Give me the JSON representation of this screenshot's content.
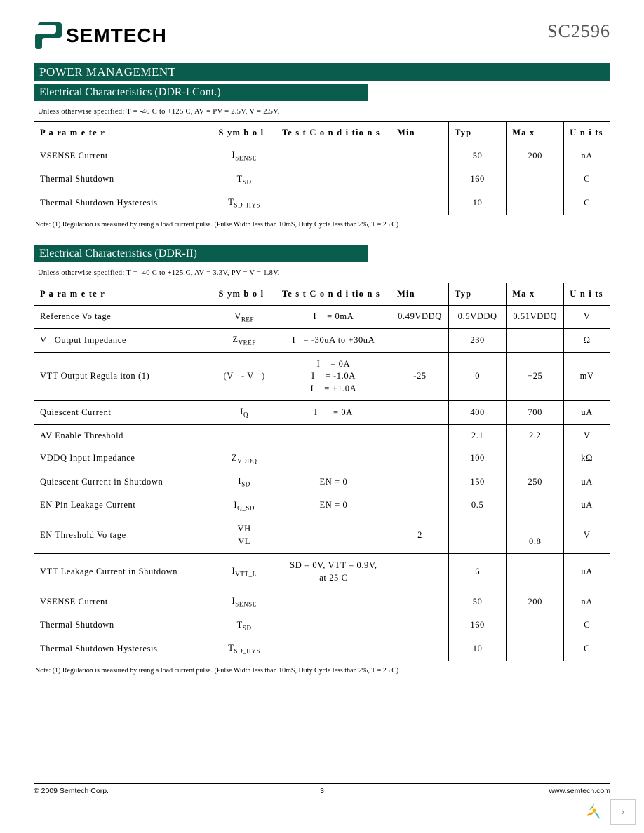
{
  "header": {
    "logo_text": "SEMTECH",
    "part_number": "SC2596"
  },
  "section_pm": "POWER MANAGEMENT",
  "colors": {
    "brand_teal": "#0a5c4c",
    "text_gray": "#555555",
    "border": "#000000"
  },
  "table1": {
    "title": "Electrical Characteristics (DDR-I Cont.)",
    "condition": "Unless otherwise specified:  T       = -40  C to +125   C, AV   = PV   = 2.5V, V       = 2.5V.",
    "columns": [
      "P a ra m e te r",
      "S ym b o l",
      "Te s t C o n d i tio n s",
      "Min",
      "Typ",
      "Ma x",
      "U n i ts"
    ],
    "rows": [
      {
        "param": "VSENSE Current",
        "symbol": "I",
        "symbol_sub": "SENSE",
        "test": "",
        "min": "",
        "typ": "50",
        "max": "200",
        "units": "nA"
      },
      {
        "param": "Thermal Shutdown",
        "symbol": "T",
        "symbol_sub": "SD",
        "test": "",
        "min": "",
        "typ": "160",
        "max": "",
        "units": "C"
      },
      {
        "param": "Thermal Shutdown Hysteresis",
        "symbol": "T",
        "symbol_sub": "SD_HYS",
        "test": "",
        "min": "",
        "typ": "10",
        "max": "",
        "units": "C"
      }
    ],
    "footnote": "Note:  (1)  Regulation is measured by using a load current pulse.  (Pulse Width less than  10mS, Duty Cycle less than 2%,  T                                    = 25   C)"
  },
  "table2": {
    "title": "Electrical Characteristics (DDR-II)",
    "condition": "Unless otherwise specified:  T       = -40  C to +125   C, AV   = 3.3V, PV    =  V      = 1.8V.",
    "columns": [
      "P a ra m e te r",
      "S ym b o l",
      "Te s t C o n d i tio n s",
      "Min",
      "Typ",
      "Ma x",
      "U n i ts"
    ],
    "rows": [
      {
        "param": "Reference Vo tage",
        "symbol": "V",
        "symbol_sub": "REF",
        "test": "I    = 0mA",
        "min": "0.49VDDQ",
        "typ": "0.5VDDQ",
        "max": "0.51VDDQ",
        "units": "V"
      },
      {
        "param": "V   Output Impedance",
        "symbol": "Z",
        "symbol_sub": "VREF",
        "test": "I   = -30uA to +30uA",
        "min": "",
        "typ": "230",
        "max": "",
        "units": "Ω"
      },
      {
        "param": "VTT Output Regula iton (1)",
        "symbol_html": "(V   - V   )",
        "test_html": "I    = 0A<br>I    = -1.0A<br>I    = +1.0A",
        "min": "-25",
        "typ": "0",
        "max": "+25",
        "units": "mV"
      },
      {
        "param": "Quiescent Current",
        "symbol": "I",
        "symbol_sub": "Q",
        "test": "I      = 0A",
        "min": "",
        "typ": "400",
        "max": "700",
        "units": "uA"
      },
      {
        "param": "AV   Enable Threshold",
        "symbol": "",
        "test": "",
        "min": "",
        "typ": "2.1",
        "max": "2.2",
        "units": "V"
      },
      {
        "param": "VDDQ Input Impedance",
        "symbol": "Z",
        "symbol_sub": "VDDQ",
        "test": "",
        "min": "",
        "typ": "100",
        "max": "",
        "units": "kΩ"
      },
      {
        "param": "Quiescent Current in Shutdown",
        "symbol": "I",
        "symbol_sub": "SD",
        "test": "EN = 0",
        "min": "",
        "typ": "150",
        "max": "250",
        "units": "uA"
      },
      {
        "param": "EN Pin Leakage Current",
        "symbol": "I",
        "symbol_sub": "Q_SD",
        "test": "EN = 0",
        "min": "",
        "typ": "0.5",
        "max": "",
        "units": "uA"
      },
      {
        "param": "EN Threshold Vo tage",
        "symbol_html": "VH<br>VL",
        "test": "",
        "min": "2",
        "typ": "",
        "max_html": "<br>0.8",
        "units": "V"
      },
      {
        "param": "VTT Leakage Current in Shutdown",
        "symbol": "I",
        "symbol_sub": "VTT_L",
        "test_html": "SD = 0V, VTT = 0.9V,<br>at 25  C",
        "min": "",
        "typ": "6",
        "max": "",
        "units": "uA"
      },
      {
        "param": "VSENSE Current",
        "symbol": "I",
        "symbol_sub": "SENSE",
        "test": "",
        "min": "",
        "typ": "50",
        "max": "200",
        "units": "nA"
      },
      {
        "param": "Thermal Shutdown",
        "symbol": "T",
        "symbol_sub": "SD",
        "test": "",
        "min": "",
        "typ": "160",
        "max": "",
        "units": "C"
      },
      {
        "param": "Thermal Shutdown Hysteresis",
        "symbol": "T",
        "symbol_sub": "SD_HYS",
        "test": "",
        "min": "",
        "typ": "10",
        "max": "",
        "units": "C"
      }
    ],
    "footnote": "Note:  (1)  Regulation is measured by using a load current pulse.  (Pulse Width less than 10mS, Duty Cycle less than 2%,  T                                    = 25   C)"
  },
  "footer": {
    "copyright": "© 2009 Semtech Corp.",
    "page": "3",
    "url": "www.semtech.com"
  }
}
